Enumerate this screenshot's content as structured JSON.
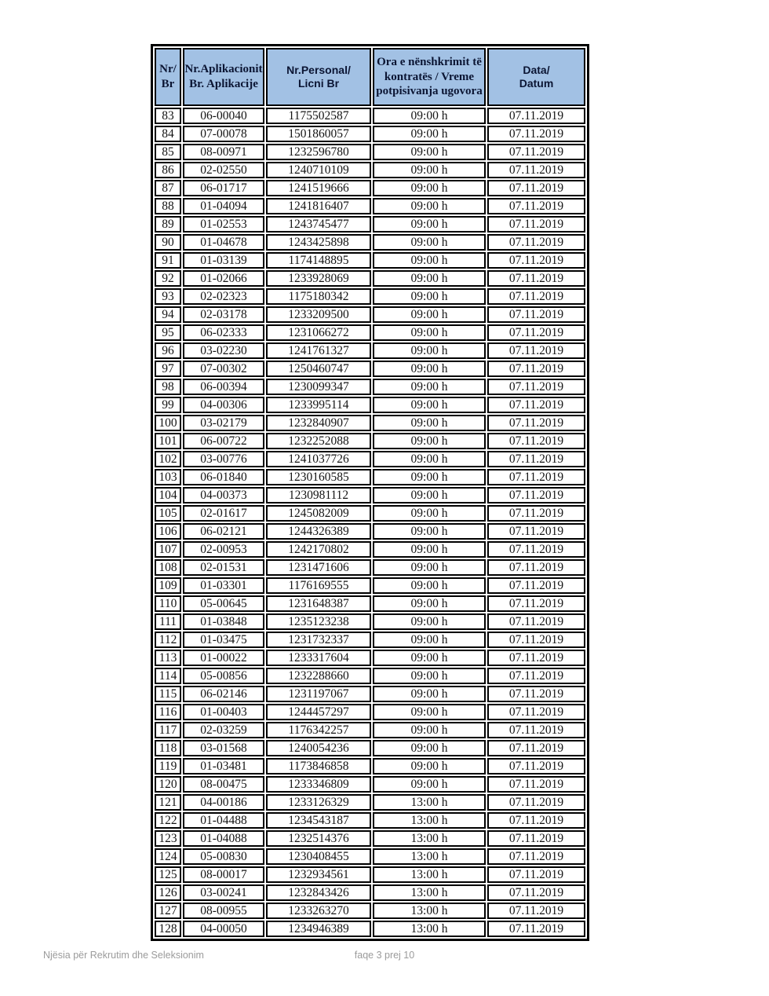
{
  "colors": {
    "header_bg": "#a2c1e4",
    "header_text": "#0b1533",
    "border": "#000000",
    "footer_text": "#9b9b9b"
  },
  "table": {
    "columns": [
      {
        "label": "Nr/\nBr"
      },
      {
        "label": "Nr.Aplikacionit\nBr. Aplikacije"
      },
      {
        "label": "Nr.Personal/\nLicni Br"
      },
      {
        "label": "Ora e nënshkrimit të\nkontratës / Vreme\npotpisivanja ugovora"
      },
      {
        "label": "Data/\nDatum"
      }
    ],
    "rows": [
      [
        "83",
        "06-00040",
        "1175502587",
        "09:00 h",
        "07.11.2019"
      ],
      [
        "84",
        "07-00078",
        "1501860057",
        "09:00 h",
        "07.11.2019"
      ],
      [
        "85",
        "08-00971",
        "1232596780",
        "09:00 h",
        "07.11.2019"
      ],
      [
        "86",
        "02-02550",
        "1240710109",
        "09:00 h",
        "07.11.2019"
      ],
      [
        "87",
        "06-01717",
        "1241519666",
        "09:00 h",
        "07.11.2019"
      ],
      [
        "88",
        "01-04094",
        "1241816407",
        "09:00 h",
        "07.11.2019"
      ],
      [
        "89",
        "01-02553",
        "1243745477",
        "09:00 h",
        "07.11.2019"
      ],
      [
        "90",
        "01-04678",
        "1243425898",
        "09:00 h",
        "07.11.2019"
      ],
      [
        "91",
        "01-03139",
        "1174148895",
        "09:00 h",
        "07.11.2019"
      ],
      [
        "92",
        "01-02066",
        "1233928069",
        "09:00 h",
        "07.11.2019"
      ],
      [
        "93",
        "02-02323",
        "1175180342",
        "09:00 h",
        "07.11.2019"
      ],
      [
        "94",
        "02-03178",
        "1233209500",
        "09:00 h",
        "07.11.2019"
      ],
      [
        "95",
        "06-02333",
        "1231066272",
        "09:00 h",
        "07.11.2019"
      ],
      [
        "96",
        "03-02230",
        "1241761327",
        "09:00 h",
        "07.11.2019"
      ],
      [
        "97",
        "07-00302",
        "1250460747",
        "09:00 h",
        "07.11.2019"
      ],
      [
        "98",
        "06-00394",
        "1230099347",
        "09:00 h",
        "07.11.2019"
      ],
      [
        "99",
        "04-00306",
        "1233995114",
        "09:00 h",
        "07.11.2019"
      ],
      [
        "100",
        "03-02179",
        "1232840907",
        "09:00 h",
        "07.11.2019"
      ],
      [
        "101",
        "06-00722",
        "1232252088",
        "09:00 h",
        "07.11.2019"
      ],
      [
        "102",
        "03-00776",
        "1241037726",
        "09:00 h",
        "07.11.2019"
      ],
      [
        "103",
        "06-01840",
        "1230160585",
        "09:00 h",
        "07.11.2019"
      ],
      [
        "104",
        "04-00373",
        "1230981112",
        "09:00 h",
        "07.11.2019"
      ],
      [
        "105",
        "02-01617",
        "1245082009",
        "09:00 h",
        "07.11.2019"
      ],
      [
        "106",
        "06-02121",
        "1244326389",
        "09:00 h",
        "07.11.2019"
      ],
      [
        "107",
        "02-00953",
        "1242170802",
        "09:00 h",
        "07.11.2019"
      ],
      [
        "108",
        "02-01531",
        "1231471606",
        "09:00 h",
        "07.11.2019"
      ],
      [
        "109",
        "01-03301",
        "1176169555",
        "09:00 h",
        "07.11.2019"
      ],
      [
        "110",
        "05-00645",
        "1231648387",
        "09:00 h",
        "07.11.2019"
      ],
      [
        "111",
        "01-03848",
        "1235123238",
        "09:00 h",
        "07.11.2019"
      ],
      [
        "112",
        "01-03475",
        "1231732337",
        "09:00 h",
        "07.11.2019"
      ],
      [
        "113",
        "01-00022",
        "1233317604",
        "09:00 h",
        "07.11.2019"
      ],
      [
        "114",
        "05-00856",
        "1232288660",
        "09:00 h",
        "07.11.2019"
      ],
      [
        "115",
        "06-02146",
        "1231197067",
        "09:00 h",
        "07.11.2019"
      ],
      [
        "116",
        "01-00403",
        "1244457297",
        "09:00 h",
        "07.11.2019"
      ],
      [
        "117",
        "02-03259",
        "1176342257",
        "09:00 h",
        "07.11.2019"
      ],
      [
        "118",
        "03-01568",
        "1240054236",
        "09:00 h",
        "07.11.2019"
      ],
      [
        "119",
        "01-03481",
        "1173846858",
        "09:00 h",
        "07.11.2019"
      ],
      [
        "120",
        "08-00475",
        "1233346809",
        "09:00 h",
        "07.11.2019"
      ],
      [
        "121",
        "04-00186",
        "1233126329",
        "13:00 h",
        "07.11.2019"
      ],
      [
        "122",
        "01-04488",
        "1234543187",
        "13:00 h",
        "07.11.2019"
      ],
      [
        "123",
        "01-04088",
        "1232514376",
        "13:00 h",
        "07.11.2019"
      ],
      [
        "124",
        "05-00830",
        "1230408455",
        "13:00 h",
        "07.11.2019"
      ],
      [
        "125",
        "08-00017",
        "1232934561",
        "13:00 h",
        "07.11.2019"
      ],
      [
        "126",
        "03-00241",
        "1232843426",
        "13:00 h",
        "07.11.2019"
      ],
      [
        "127",
        "08-00955",
        "1233263270",
        "13:00 h",
        "07.11.2019"
      ],
      [
        "128",
        "04-00050",
        "1234946389",
        "13:00 h",
        "07.11.2019"
      ]
    ]
  },
  "footer": {
    "left": "Njësia për Rekrutim dhe Seleksionim",
    "page": "faqe 3 prej 10"
  }
}
